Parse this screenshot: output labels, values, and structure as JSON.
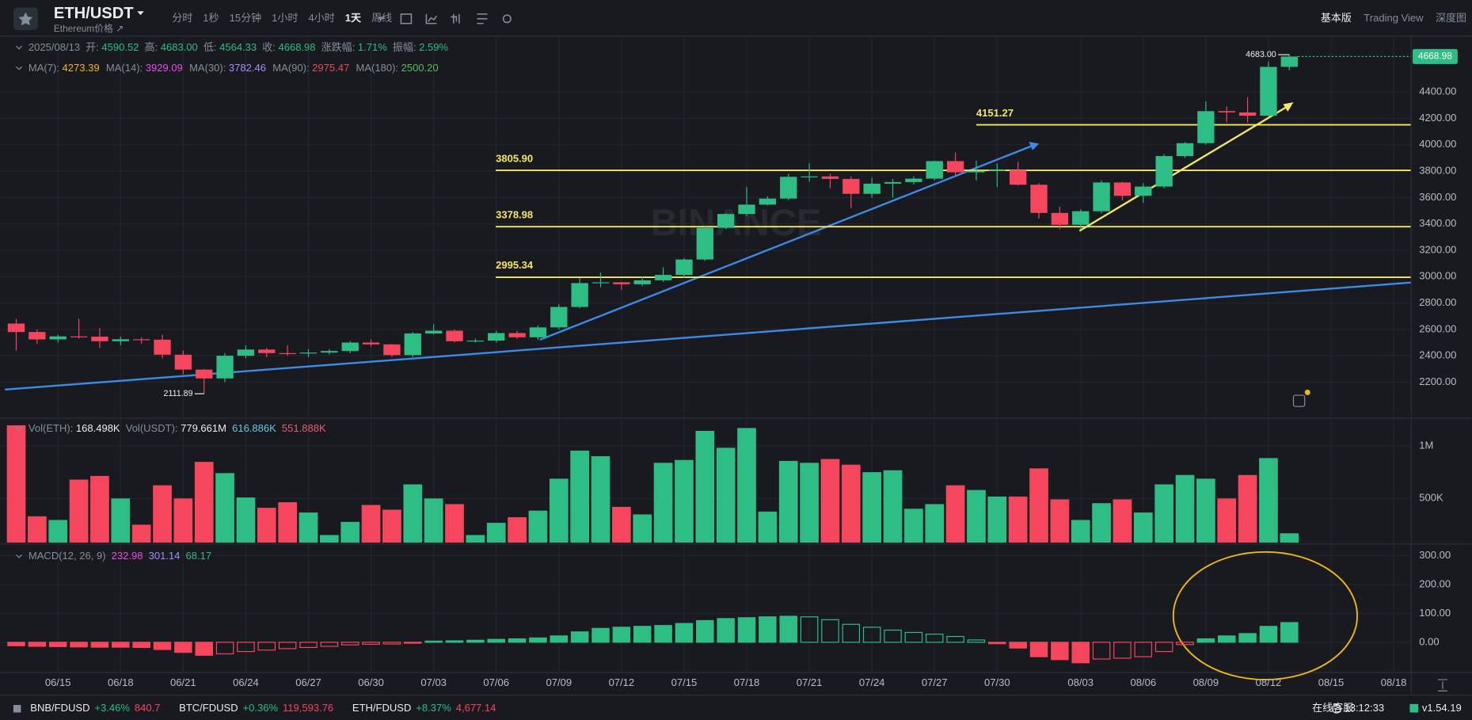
{
  "toolbar": {
    "symbol": "ETH/USDT",
    "subtitle": "Ethereum价格 ↗",
    "intervals": [
      "分时",
      "1秒",
      "15分钟",
      "1小时",
      "4小时",
      "1天",
      "周线"
    ],
    "active_interval": "1天",
    "views": [
      "基本版",
      "Trading View",
      "深度图"
    ],
    "active_view": "基本版"
  },
  "info": {
    "date": "2025/08/13",
    "fields": [
      {
        "label": "开:",
        "value": "4590.52"
      },
      {
        "label": "高:",
        "value": "4683.00"
      },
      {
        "label": "低:",
        "value": "4564.33"
      },
      {
        "label": "收:",
        "value": "4668.98"
      },
      {
        "label": "涨跌幅:",
        "value": "1.71%"
      },
      {
        "label": "振幅:",
        "value": "2.59%"
      }
    ]
  },
  "ma_legend": [
    {
      "label": "MA(7):",
      "value": "4273.39",
      "color": "#f0b90b"
    },
    {
      "label": "MA(14):",
      "value": "3929.09",
      "color": "#e84ce6"
    },
    {
      "label": "MA(30):",
      "value": "3782.46",
      "color": "#a48cf7"
    },
    {
      "label": "MA(90):",
      "value": "2975.47",
      "color": "#e0505a"
    },
    {
      "label": "MA(180):",
      "value": "2500.20",
      "color": "#5bbd5b"
    }
  ],
  "chart_data": [
    {
      "type": "candlestick",
      "watermark": "BINANCE",
      "categories": [
        "06/13",
        "06/14",
        "06/15",
        "06/16",
        "06/17",
        "06/18",
        "06/19",
        "06/20",
        "06/21",
        "06/22",
        "06/23",
        "06/24",
        "06/25",
        "06/26",
        "06/27",
        "06/28",
        "06/29",
        "06/30",
        "07/01",
        "07/02",
        "07/03",
        "07/04",
        "07/05",
        "07/06",
        "07/07",
        "07/08",
        "07/09",
        "07/10",
        "07/11",
        "07/12",
        "07/13",
        "07/14",
        "07/15",
        "07/16",
        "07/17",
        "07/18",
        "07/19",
        "07/20",
        "07/21",
        "07/22",
        "07/23",
        "07/24",
        "07/25",
        "07/26",
        "07/27",
        "07/28",
        "07/29",
        "07/30",
        "07/31",
        "08/01",
        "08/02",
        "08/03",
        "08/04",
        "08/05",
        "08/06",
        "08/07",
        "08/08",
        "08/09",
        "08/10",
        "08/11",
        "08/12",
        "08/13"
      ],
      "open": [
        2644,
        2580,
        2524,
        2547,
        2545,
        2510,
        2525,
        2522,
        2408,
        2295,
        2228,
        2400,
        2447,
        2420,
        2418,
        2424,
        2436,
        2500,
        2486,
        2405,
        2569,
        2590,
        2510,
        2515,
        2572,
        2540,
        2615,
        2770,
        2951,
        2957,
        2942,
        2972,
        3013,
        3130,
        3370,
        3475,
        3546,
        3592,
        3757,
        3760,
        3741,
        3628,
        3705,
        3717,
        3743,
        3876,
        3791,
        3802,
        3808,
        3697,
        3483,
        3393,
        3496,
        3714,
        3613,
        3683,
        3914,
        4012,
        4255,
        4245,
        4220,
        4590.52
      ],
      "high": [
        2680,
        2600,
        2560,
        2680,
        2610,
        2545,
        2540,
        2560,
        2440,
        2300,
        2420,
        2480,
        2460,
        2480,
        2450,
        2450,
        2510,
        2525,
        2490,
        2580,
        2640,
        2600,
        2530,
        2590,
        2590,
        2630,
        2790,
        2990,
        3030,
        2960,
        3000,
        3070,
        3140,
        3380,
        3480,
        3680,
        3610,
        3780,
        3860,
        3780,
        3760,
        3750,
        3740,
        3760,
        3880,
        3940,
        3880,
        3860,
        3870,
        3710,
        3530,
        3510,
        3730,
        3720,
        3710,
        3930,
        4020,
        4330,
        4290,
        4360,
        4630,
        4683
      ],
      "low": [
        2440,
        2490,
        2500,
        2530,
        2460,
        2480,
        2490,
        2380,
        2260,
        2111.89,
        2200,
        2380,
        2390,
        2400,
        2390,
        2410,
        2420,
        2470,
        2390,
        2390,
        2560,
        2500,
        2500,
        2500,
        2530,
        2520,
        2600,
        2760,
        2920,
        2900,
        2930,
        2960,
        2990,
        3120,
        3360,
        3460,
        3540,
        3580,
        3720,
        3670,
        3520,
        3600,
        3600,
        3700,
        3730,
        3770,
        3730,
        3680,
        3690,
        3440,
        3360,
        3355,
        3480,
        3580,
        3560,
        3670,
        3900,
        4000,
        4170,
        4170,
        4210,
        4564.33
      ],
      "close": [
        2580,
        2524,
        2547,
        2545,
        2510,
        2525,
        2522,
        2408,
        2295,
        2228,
        2400,
        2447,
        2420,
        2418,
        2424,
        2436,
        2500,
        2486,
        2405,
        2569,
        2590,
        2510,
        2515,
        2572,
        2540,
        2615,
        2770,
        2951,
        2957,
        2942,
        2972,
        3013,
        3130,
        3370,
        3475,
        3546,
        3592,
        3757,
        3760,
        3741,
        3628,
        3705,
        3717,
        3743,
        3876,
        3791,
        3802,
        3808,
        3697,
        3483,
        3393,
        3496,
        3714,
        3613,
        3683,
        3914,
        4012,
        4255,
        4245,
        4220,
        4590.52,
        4668.98
      ],
      "up_color": "#2ebd85",
      "down_color": "#f6465d",
      "ylim": [
        1930,
        4813
      ],
      "yticks": [
        {
          "value": 2200,
          "label": "2200.00"
        },
        {
          "value": 2400,
          "label": "2400.00"
        },
        {
          "value": 2600,
          "label": "2600.00"
        },
        {
          "value": 2800,
          "label": "2800.00"
        },
        {
          "value": 3000,
          "label": "3000.00"
        },
        {
          "value": 3200,
          "label": "3200.00"
        },
        {
          "value": 3400,
          "label": "3400.00"
        },
        {
          "value": 3600,
          "label": "3600.00"
        },
        {
          "value": 3800,
          "label": "3800.00"
        },
        {
          "value": 4000,
          "label": "4000.00"
        },
        {
          "value": 4200,
          "label": "4200.00"
        },
        {
          "value": 4400,
          "label": "4400.00"
        }
      ],
      "levels": [
        {
          "value": 4151.27,
          "label": "4151.27"
        },
        {
          "value": 3805.9,
          "label": "3805.90"
        },
        {
          "value": 3378.98,
          "label": "3378.98"
        },
        {
          "value": 2995.34,
          "label": "2995.34"
        }
      ],
      "level_color": "#f5e663",
      "high_label": "4683.00",
      "low_label": "2111.89",
      "xticks": [
        "06/15",
        "06/18",
        "06/21",
        "06/24",
        "06/27",
        "06/30",
        "07/03",
        "07/06",
        "07/09",
        "07/12",
        "07/15",
        "07/18",
        "07/21",
        "07/24",
        "07/27",
        "07/30",
        "08/03",
        "08/06",
        "08/09",
        "08/12",
        "08/15",
        "08/18"
      ]
    },
    {
      "type": "volume",
      "legend": [
        {
          "label": "Vol(ETH):",
          "value": "168.498K"
        },
        {
          "label": "Vol(USDT):",
          "value": "779.661M"
        },
        {
          "value": "616.886K",
          "color": "#6bc7e0"
        },
        {
          "value": "551.888K",
          "color": "#e55b73"
        }
      ],
      "values": [
        1196000,
        330000,
        295000,
        679000,
        714000,
        500000,
        250000,
        625000,
        500000,
        848000,
        741000,
        509000,
        411000,
        464000,
        366000,
        152000,
        277000,
        438000,
        393000,
        634000,
        500000,
        446000,
        152000,
        268000,
        321000,
        384000,
        688000,
        955000,
        902000,
        420000,
        348000,
        839000,
        866000,
        1143000,
        982000,
        1170000,
        375000,
        857000,
        839000,
        875000,
        821000,
        750000,
        768000,
        402000,
        446000,
        625000,
        580000,
        518000,
        518000,
        786000,
        491000,
        295000,
        455000,
        491000,
        366000,
        634000,
        723000,
        688000,
        500000,
        723000,
        884000,
        168498
      ],
      "ylim": [
        80000,
        1250000
      ],
      "yticks": [
        {
          "value": 500000,
          "label": "500K"
        },
        {
          "value": 1000000,
          "label": "1M"
        }
      ]
    },
    {
      "type": "macd",
      "title": "MACD(12, 26, 9)",
      "legend": [
        {
          "value": "232.98",
          "color": "#e84ce6"
        },
        {
          "value": "301.14",
          "color": "#a48cf7"
        },
        {
          "value": "68.17",
          "color": "#2ebd85"
        }
      ],
      "values": [
        -12,
        -14,
        -15,
        -16,
        -17,
        -17,
        -18,
        -25,
        -35,
        -45,
        -40,
        -32,
        -27,
        -22,
        -18,
        -14,
        -9,
        -7,
        -6,
        -1,
        4,
        5,
        7,
        10,
        12,
        15,
        22,
        36,
        48,
        52,
        55,
        58,
        65,
        75,
        82,
        85,
        88,
        90,
        88,
        78,
        62,
        52,
        42,
        34,
        28,
        20,
        8,
        -5,
        -20,
        -50,
        -60,
        -71,
        -58,
        -55,
        -50,
        -32,
        -8,
        12,
        22,
        30,
        55,
        68.17
      ],
      "ylim": [
        -100,
        335
      ],
      "yticks": [
        {
          "value": 0,
          "label": "0.00"
        },
        {
          "value": 100,
          "label": "100.00"
        },
        {
          "value": 200,
          "label": "200.00"
        },
        {
          "value": 300,
          "label": "300.00"
        }
      ]
    }
  ],
  "footer": {
    "tickers": [
      {
        "symbol": "BNB/FDUSD",
        "change": "+3.46%",
        "price": "840.7"
      },
      {
        "symbol": "BTC/FDUSD",
        "change": "+0.36%",
        "price": "119,593.76"
      },
      {
        "symbol": "ETH/FDUSD",
        "change": "+8.37%",
        "price": "4,677.14"
      }
    ],
    "support": "在线客服",
    "time": "13:12:33",
    "version": "v1.54.19"
  }
}
